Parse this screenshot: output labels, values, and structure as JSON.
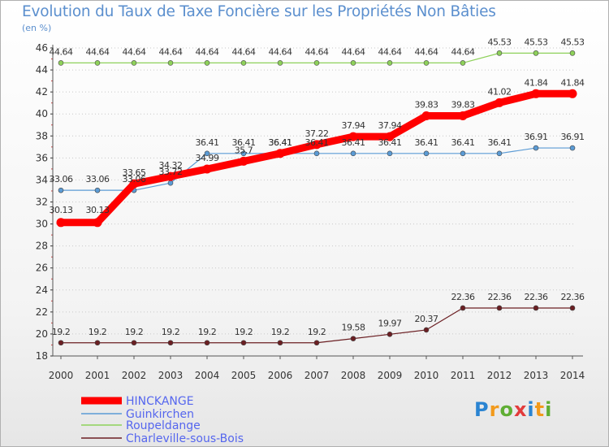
{
  "chart_data": {
    "type": "line",
    "title": "Evolution du Taux de Taxe Foncière sur les Propriétés Non Bâties",
    "ylabel": "(en %)",
    "xlabel": "",
    "ylim": [
      18,
      46
    ],
    "yticks": [
      18,
      20,
      22,
      24,
      26,
      28,
      30,
      32,
      34,
      36,
      38,
      40,
      42,
      44,
      46
    ],
    "x": [
      "2000",
      "2001",
      "2002",
      "2003",
      "2004",
      "2005",
      "2006",
      "2007",
      "2008",
      "2009",
      "2010",
      "2011",
      "2012",
      "2013",
      "2014"
    ],
    "series": [
      {
        "name": "HINCKANGE",
        "color": "#ff0000",
        "emphasis": true,
        "values": [
          30.13,
          30.13,
          33.65,
          34.32,
          34.99,
          35.7,
          36.41,
          37.22,
          37.94,
          37.94,
          39.83,
          39.83,
          41.02,
          41.84,
          41.84
        ],
        "labels": [
          "30.13",
          "30.13",
          "33.65",
          "34.32",
          "34.99",
          "35.7",
          "36.41",
          "37.22",
          "37.94",
          "37.94",
          "39.83",
          "39.83",
          "41.02",
          "41.84",
          "41.84"
        ]
      },
      {
        "name": "Guinkirchen",
        "color": "#5b9bd5",
        "values": [
          33.06,
          33.06,
          33.06,
          33.72,
          36.41,
          36.41,
          36.41,
          36.41,
          36.41,
          36.41,
          36.41,
          36.41,
          36.41,
          36.91,
          36.91
        ],
        "labels": [
          "33.06",
          "33.06",
          "33.06",
          "33.72",
          "36.41",
          "36.41",
          "36.41",
          "36.41",
          "36.41",
          "36.41",
          "36.41",
          "36.41",
          "36.41",
          "36.91",
          "36.91"
        ]
      },
      {
        "name": "Roupeldange",
        "color": "#8ed15a",
        "values": [
          44.64,
          44.64,
          44.64,
          44.64,
          44.64,
          44.64,
          44.64,
          44.64,
          44.64,
          44.64,
          44.64,
          44.64,
          45.53,
          45.53,
          45.53
        ],
        "labels": [
          "44.64",
          "44.64",
          "44.64",
          "44.64",
          "44.64",
          "44.64",
          "44.64",
          "44.64",
          "44.64",
          "44.64",
          "44.64",
          "44.64",
          "45.53",
          "45.53",
          "45.53"
        ]
      },
      {
        "name": "Charleville-sous-Bois",
        "color": "#6b1f23",
        "values": [
          19.2,
          19.2,
          19.2,
          19.2,
          19.2,
          19.2,
          19.2,
          19.2,
          19.58,
          19.97,
          20.37,
          22.36,
          22.36,
          22.36,
          22.36
        ],
        "labels": [
          "19.2",
          "19.2",
          "19.2",
          "19.2",
          "19.2",
          "19.2",
          "19.2",
          "19.2",
          "19.58",
          "19.97",
          "20.37",
          "22.36",
          "22.36",
          "22.36",
          "22.36"
        ]
      }
    ],
    "legend_position": "bottom-left"
  },
  "logo": {
    "text": "Proxiti",
    "letters": [
      "P",
      "r",
      "o",
      "x",
      "i",
      "t",
      "i"
    ],
    "letter_colors": [
      "#2a84d2",
      "#f29a1c",
      "#5fae34",
      "#e23b3b",
      "#2a84d2",
      "#f29a1c",
      "#5fae34"
    ]
  }
}
